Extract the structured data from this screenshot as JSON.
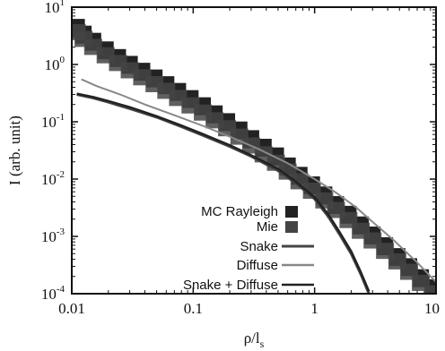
{
  "chart_data": {
    "type": "scatter",
    "title": "",
    "xlabel": "ρ/l",
    "xlabel_subscript": "s",
    "ylabel": "I (arb. unit)",
    "xscale": "log",
    "yscale": "log",
    "xlim": [
      0.01,
      10
    ],
    "ylim": [
      0.0001,
      10
    ],
    "x_tick_labels": [
      "0.01",
      "0.1",
      "1",
      "10"
    ],
    "y_tick_labels": [
      {
        "base": "10",
        "exp": "-4",
        "value": 0.0001
      },
      {
        "base": "10",
        "exp": "-3",
        "value": 0.001
      },
      {
        "base": "10",
        "exp": "-2",
        "value": 0.01
      },
      {
        "base": "10",
        "exp": "-1",
        "value": 0.1
      },
      {
        "base": "10",
        "exp": "0",
        "value": 1
      },
      {
        "base": "10",
        "exp": "1",
        "value": 10
      }
    ],
    "legend_position": "bottom-center",
    "series": [
      {
        "name": "MC Rayleigh",
        "kind": "scatter",
        "color": "#222222",
        "x": [
          0.011,
          0.0125,
          0.015,
          0.019,
          0.024,
          0.03,
          0.038,
          0.048,
          0.06,
          0.075,
          0.095,
          0.12,
          0.15,
          0.19,
          0.24,
          0.3,
          0.38,
          0.48,
          0.6,
          0.75,
          0.95,
          1.2,
          1.5,
          1.9,
          2.4,
          3.0,
          3.8,
          4.8,
          6.0,
          7.5,
          9.5
        ],
        "y": [
          4.2,
          3.2,
          2.4,
          1.7,
          1.25,
          0.95,
          0.72,
          0.55,
          0.42,
          0.32,
          0.24,
          0.18,
          0.13,
          0.095,
          0.068,
          0.048,
          0.034,
          0.024,
          0.016,
          0.011,
          0.0075,
          0.005,
          0.0034,
          0.0023,
          0.0015,
          0.001,
          0.00065,
          0.00042,
          0.00028,
          0.00018,
          0.00012
        ]
      },
      {
        "name": "Mie",
        "kind": "scatter",
        "color": "#444444",
        "x": [
          0.011,
          0.0125,
          0.015,
          0.019,
          0.024,
          0.03,
          0.038,
          0.048,
          0.06,
          0.075,
          0.095,
          0.12,
          0.15,
          0.19,
          0.24,
          0.3,
          0.38,
          0.48,
          0.6,
          0.75,
          0.95,
          1.2,
          1.5,
          1.9,
          2.4,
          3.0,
          3.8,
          4.8,
          6.0,
          7.5,
          9.5
        ],
        "y": [
          3.8,
          2.9,
          2.1,
          1.5,
          1.1,
          0.82,
          0.62,
          0.47,
          0.36,
          0.27,
          0.2,
          0.15,
          0.11,
          0.08,
          0.057,
          0.04,
          0.028,
          0.02,
          0.014,
          0.0095,
          0.0065,
          0.0044,
          0.003,
          0.002,
          0.0013,
          0.00088,
          0.00058,
          0.00038,
          0.00025,
          0.00016,
          0.000105
        ]
      },
      {
        "name": "Snake",
        "kind": "line",
        "color": "#444444",
        "x": [
          0.011,
          0.015,
          0.02,
          0.03,
          0.05,
          0.08,
          0.12,
          0.2,
          0.3,
          0.5,
          0.7,
          1.0,
          1.3,
          1.6,
          2.0,
          2.4,
          2.8
        ],
        "y": [
          0.3,
          0.26,
          0.22,
          0.17,
          0.12,
          0.082,
          0.058,
          0.037,
          0.025,
          0.014,
          0.0085,
          0.0045,
          0.0022,
          0.0011,
          0.0005,
          0.00022,
          0.0001
        ]
      },
      {
        "name": "Diffuse",
        "kind": "line",
        "color": "#888888",
        "x": [
          0.012,
          0.016,
          0.025,
          0.04,
          0.07,
          0.12,
          0.2,
          0.35,
          0.6,
          1.0,
          1.5,
          2.2,
          3.0,
          4.5,
          7.0,
          10
        ],
        "y": [
          0.55,
          0.42,
          0.3,
          0.2,
          0.13,
          0.085,
          0.055,
          0.033,
          0.019,
          0.01,
          0.0058,
          0.0032,
          0.0018,
          0.00085,
          0.00035,
          0.00016
        ]
      },
      {
        "name": "Snake + Diffuse",
        "kind": "line",
        "color": "#222222",
        "x": [
          0.011,
          0.015,
          0.02,
          0.03,
          0.05,
          0.08,
          0.12,
          0.2,
          0.3,
          0.5,
          0.7,
          1.0,
          1.3,
          1.6,
          2.0,
          2.4,
          2.8
        ],
        "y": [
          0.31,
          0.27,
          0.23,
          0.18,
          0.125,
          0.086,
          0.061,
          0.039,
          0.026,
          0.015,
          0.009,
          0.0048,
          0.0024,
          0.0012,
          0.00055,
          0.00024,
          0.00011
        ]
      }
    ]
  }
}
